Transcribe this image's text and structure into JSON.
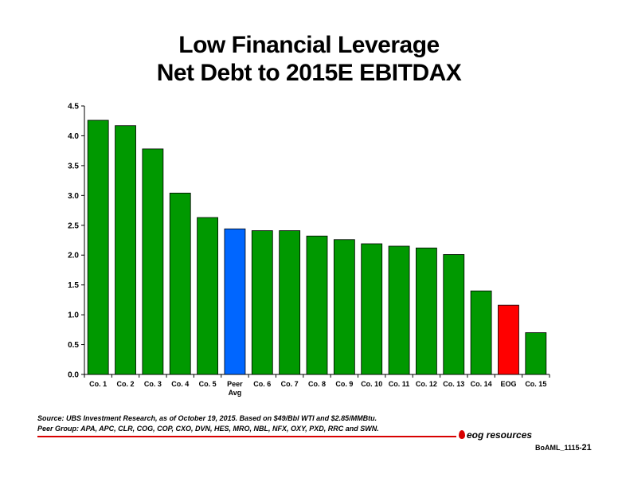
{
  "title_line1": "Low Financial Leverage",
  "title_line2": "Net Debt to 2015E EBITDAX",
  "chart_data": {
    "type": "bar",
    "title": "Low Financial Leverage Net Debt to 2015E EBITDAX",
    "categories": [
      "Co. 1",
      "Co. 2",
      "Co. 3",
      "Co. 4",
      "Co. 5",
      "Peer Avg",
      "Co. 6",
      "Co. 7",
      "Co. 8",
      "Co. 9",
      "Co. 10",
      "Co. 11",
      "Co. 12",
      "Co. 13",
      "Co. 14",
      "EOG",
      "Co. 15"
    ],
    "values": [
      4.26,
      4.17,
      3.78,
      3.04,
      2.63,
      2.44,
      2.41,
      2.41,
      2.32,
      2.26,
      2.19,
      2.15,
      2.12,
      2.01,
      1.4,
      1.16,
      0.7
    ],
    "bar_colors": [
      "#009900",
      "#009900",
      "#009900",
      "#009900",
      "#009900",
      "#0066ff",
      "#009900",
      "#009900",
      "#009900",
      "#009900",
      "#009900",
      "#009900",
      "#009900",
      "#009900",
      "#009900",
      "#ff0000",
      "#009900"
    ],
    "yticks": [
      "0.0",
      "0.5",
      "1.0",
      "1.5",
      "2.0",
      "2.5",
      "3.0",
      "3.5",
      "4.0",
      "4.5"
    ],
    "ylim": [
      0,
      4.5
    ],
    "grid": false,
    "legend": "none"
  },
  "footnote_line1": "Source: UBS Investment Research, as of October 19, 2015. Based on $49/Bbl WTI and $2.85/MMBtu.",
  "footnote_line2": "Peer Group: APA, APC, CLR, COG, COP, CXO, DVN, HES, MRO, NBL, NFX, OXY, PXD, RRC and SWN.",
  "logo_text": "eog resources",
  "page_ref": "BoAML_1115-",
  "page_number": "21"
}
